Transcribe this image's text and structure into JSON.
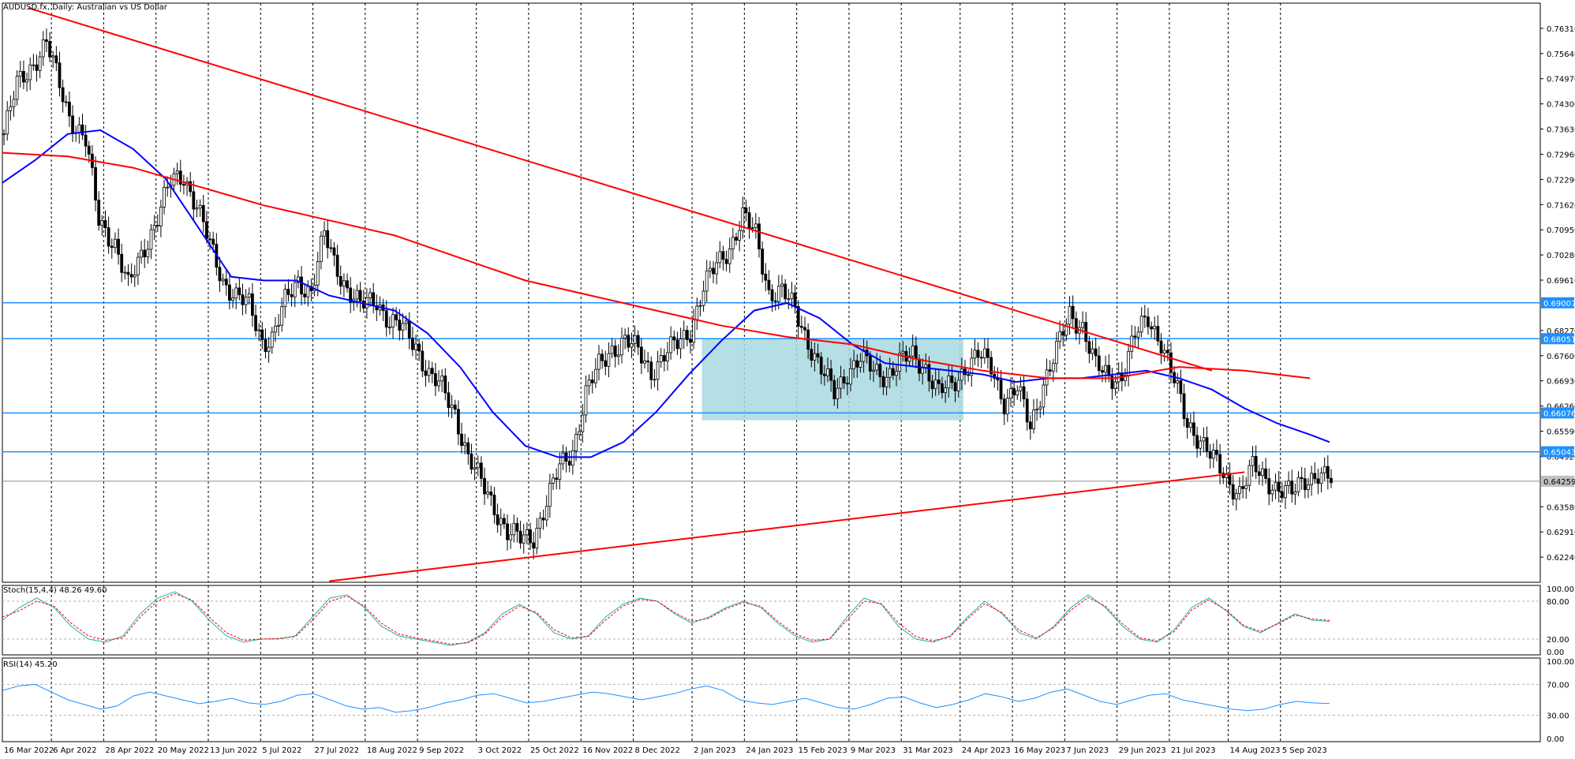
{
  "chart_data": {
    "type": "candlestick",
    "title": "AUDUSD.fx, Daily:  Australian vs US Dollar",
    "symbol": "AUDUSD.fx",
    "timeframe": "Daily",
    "y_axis": {
      "ylim": [
        0.6157,
        0.7698
      ],
      "tick_labels": [
        "0.76310",
        "0.75640",
        "0.74970",
        "0.74300",
        "0.73630",
        "0.72960",
        "0.72290",
        "0.71620",
        "0.70950",
        "0.70280",
        "0.69610",
        "0.68270",
        "0.67600",
        "0.66930",
        "0.66260",
        "0.65590",
        "0.64920",
        "0.63580",
        "0.62910",
        "0.62240"
      ],
      "ticks": [
        0.7631,
        0.7564,
        0.7497,
        0.743,
        0.7363,
        0.7296,
        0.7229,
        0.7162,
        0.7095,
        0.7028,
        0.6961,
        0.6827,
        0.676,
        0.6693,
        0.6626,
        0.6559,
        0.6492,
        0.6358,
        0.6291,
        0.6224
      ]
    },
    "x_axis": {
      "tick_labels": [
        "16 Mar 2022",
        "6 Apr 2022",
        "28 Apr 2022",
        "20 May 2022",
        "13 Jun 2022",
        "5 Jul 2022",
        "27 Jul 2022",
        "18 Aug 2022",
        "9 Sep 2022",
        "3 Oct 2022",
        "25 Oct 2022",
        "16 Nov 2022",
        "8 Dec 2022",
        "2 Jan 2023",
        "24 Jan 2023",
        "15 Feb 2023",
        "9 Mar 2023",
        "31 Mar 2023",
        "24 Apr 2023",
        "16 May 2023",
        "7 Jun 2023",
        "29 Jun 2023",
        "21 Jul 2023",
        "14 Aug 2023",
        "5 Sep 2023"
      ],
      "bar_index": [
        0,
        15,
        31,
        47,
        63,
        79,
        95,
        111,
        127,
        145,
        161,
        177,
        193,
        211,
        227,
        243,
        259,
        275,
        293,
        309,
        325,
        341,
        357,
        375,
        391
      ]
    },
    "candles_keypoints": {
      "description_bar_index": [
        0,
        4,
        9,
        13,
        17,
        20,
        25,
        29,
        34,
        38,
        43,
        47,
        51,
        55,
        59,
        63,
        67,
        71,
        75,
        79,
        82,
        86,
        90,
        94,
        98,
        101,
        105,
        109,
        114,
        118,
        122,
        126,
        130,
        134,
        138,
        142,
        146,
        150,
        154,
        158,
        162,
        166,
        170,
        174,
        178,
        182,
        186,
        190,
        194,
        198,
        202,
        206,
        210,
        214,
        218,
        222,
        226,
        230,
        234,
        238,
        242,
        246,
        250,
        254,
        258,
        262,
        266,
        270,
        274,
        278,
        282,
        286,
        290,
        294,
        298,
        302,
        306,
        310,
        314,
        318,
        322,
        326,
        330,
        334,
        338,
        342,
        346,
        350,
        354,
        358,
        362,
        366,
        370,
        374,
        378,
        382,
        386,
        390,
        394,
        398,
        402,
        406
      ],
      "close": [
        0.735,
        0.748,
        0.754,
        0.759,
        0.748,
        0.74,
        0.733,
        0.712,
        0.706,
        0.694,
        0.705,
        0.713,
        0.722,
        0.724,
        0.716,
        0.705,
        0.696,
        0.692,
        0.689,
        0.68,
        0.681,
        0.69,
        0.696,
        0.693,
        0.708,
        0.701,
        0.694,
        0.689,
        0.691,
        0.685,
        0.683,
        0.679,
        0.671,
        0.667,
        0.661,
        0.649,
        0.642,
        0.636,
        0.629,
        0.627,
        0.628,
        0.637,
        0.646,
        0.651,
        0.666,
        0.673,
        0.678,
        0.68,
        0.677,
        0.672,
        0.676,
        0.679,
        0.683,
        0.694,
        0.7,
        0.705,
        0.713,
        0.708,
        0.693,
        0.693,
        0.688,
        0.68,
        0.672,
        0.666,
        0.672,
        0.675,
        0.672,
        0.671,
        0.674,
        0.676,
        0.673,
        0.666,
        0.668,
        0.673,
        0.676,
        0.673,
        0.664,
        0.667,
        0.657,
        0.669,
        0.677,
        0.687,
        0.684,
        0.673,
        0.67,
        0.671,
        0.681,
        0.686,
        0.68,
        0.669,
        0.658,
        0.654,
        0.648,
        0.643,
        0.64,
        0.646,
        0.643,
        0.641,
        0.639,
        0.643,
        0.645,
        0.6425
      ]
    },
    "moving_averages": [
      {
        "color": "#0000ff",
        "bar_index": [
          0,
          10,
          20,
          30,
          40,
          50,
          60,
          70,
          80,
          90,
          100,
          110,
          120,
          130,
          140,
          150,
          160,
          170,
          180,
          190,
          200,
          210,
          220,
          230,
          240,
          250,
          260,
          270,
          280,
          290,
          300,
          310,
          320,
          330,
          340,
          350,
          360,
          370,
          380,
          390,
          400,
          406
        ],
        "values": [
          0.722,
          0.728,
          0.735,
          0.736,
          0.731,
          0.723,
          0.71,
          0.697,
          0.696,
          0.696,
          0.692,
          0.69,
          0.688,
          0.682,
          0.673,
          0.661,
          0.652,
          0.649,
          0.649,
          0.653,
          0.661,
          0.671,
          0.68,
          0.688,
          0.69,
          0.686,
          0.679,
          0.674,
          0.673,
          0.672,
          0.671,
          0.669,
          0.67,
          0.67,
          0.671,
          0.672,
          0.67,
          0.667,
          0.662,
          0.658,
          0.655,
          0.653
        ]
      },
      {
        "color": "#ff0000",
        "bar_index": [
          0,
          20,
          40,
          60,
          80,
          100,
          120,
          140,
          160,
          180,
          200,
          220,
          240,
          260,
          280,
          300,
          320,
          340,
          360,
          380,
          400
        ],
        "values": [
          0.73,
          0.729,
          0.726,
          0.721,
          0.716,
          0.712,
          0.708,
          0.702,
          0.696,
          0.692,
          0.688,
          0.684,
          0.681,
          0.679,
          0.675,
          0.672,
          0.67,
          0.67,
          0.673,
          0.672,
          0.67
        ]
      }
    ],
    "horizontal_levels": [
      {
        "label": "0.69007",
        "value": 0.69007,
        "color": "#1e90ff"
      },
      {
        "label": "0.68051",
        "value": 0.68051,
        "color": "#1e90ff"
      },
      {
        "label": "0.66076",
        "value": 0.66076,
        "color": "#1e90ff"
      },
      {
        "label": "0.65043",
        "value": 0.65043,
        "color": "#1e90ff"
      }
    ],
    "current_price_label": "0.64259",
    "current_price": 0.64259,
    "trendlines": [
      {
        "color": "#ff0000",
        "from": {
          "bar_index": 8,
          "value": 0.7685
        },
        "to": {
          "bar_index": 370,
          "value": 0.672
        }
      },
      {
        "color": "#ff0000",
        "from": {
          "bar_index": 100,
          "value": 0.616
        },
        "to": {
          "bar_index": 380,
          "value": 0.645
        }
      }
    ],
    "range_box": {
      "from_bar_index": 214,
      "to_bar_index": 294,
      "top": 0.68051,
      "bottom": 0.6588,
      "color": "#a8d8e0"
    },
    "stochastic": {
      "label": "Stoch(15,4,4) 48.26 49.60",
      "tick_labels": [
        "100.00",
        "80.00",
        "20.00",
        "0.00"
      ],
      "ticks": [
        100,
        80,
        20,
        0
      ],
      "main": [
        50,
        70,
        85,
        70,
        40,
        20,
        15,
        25,
        60,
        85,
        95,
        80,
        50,
        25,
        15,
        20,
        20,
        25,
        55,
        85,
        90,
        70,
        40,
        25,
        20,
        15,
        10,
        15,
        30,
        60,
        75,
        60,
        30,
        20,
        25,
        55,
        75,
        85,
        80,
        60,
        45,
        55,
        70,
        80,
        70,
        45,
        25,
        15,
        20,
        55,
        85,
        75,
        40,
        20,
        15,
        25,
        55,
        80,
        60,
        30,
        20,
        40,
        70,
        90,
        70,
        40,
        20,
        15,
        35,
        70,
        85,
        65,
        40,
        30,
        45,
        60,
        50,
        48
      ],
      "signal": [
        55,
        65,
        80,
        72,
        45,
        25,
        18,
        22,
        55,
        80,
        92,
        82,
        55,
        30,
        18,
        20,
        21,
        24,
        50,
        80,
        88,
        72,
        45,
        28,
        22,
        17,
        12,
        14,
        28,
        55,
        72,
        62,
        35,
        22,
        24,
        50,
        72,
        83,
        80,
        62,
        48,
        53,
        68,
        78,
        72,
        48,
        28,
        18,
        20,
        50,
        80,
        76,
        45,
        24,
        17,
        24,
        52,
        76,
        62,
        34,
        22,
        38,
        66,
        86,
        72,
        44,
        22,
        17,
        32,
        66,
        82,
        66,
        42,
        32,
        44,
        58,
        52,
        49.6
      ]
    },
    "rsi": {
      "label": "RSI(14) 45.20",
      "tick_labels": [
        "100.00",
        "70.00",
        "30.00",
        "0.00"
      ],
      "ticks": [
        100,
        70,
        30,
        0
      ],
      "values": [
        62,
        68,
        70,
        60,
        50,
        44,
        38,
        42,
        55,
        60,
        55,
        50,
        45,
        48,
        52,
        46,
        44,
        48,
        56,
        58,
        50,
        42,
        38,
        40,
        34,
        36,
        40,
        46,
        50,
        56,
        58,
        52,
        46,
        48,
        52,
        56,
        60,
        58,
        54,
        50,
        54,
        58,
        64,
        68,
        62,
        50,
        46,
        44,
        48,
        52,
        46,
        40,
        38,
        44,
        52,
        54,
        46,
        40,
        44,
        50,
        58,
        54,
        48,
        52,
        60,
        64,
        56,
        48,
        44,
        50,
        56,
        58,
        50,
        46,
        42,
        38,
        36,
        38,
        44,
        48,
        46,
        45.2
      ]
    }
  }
}
